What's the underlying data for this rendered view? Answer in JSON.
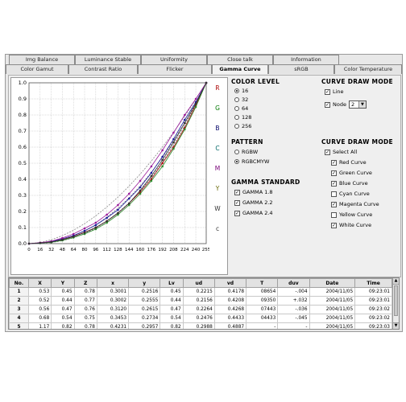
{
  "tabs_row1": [
    "Img Balance",
    "Luminance Stable",
    "Uniformity",
    "Close talk",
    "Information"
  ],
  "tabs_row2": [
    "Color Gamut",
    "Contrast Ratio",
    "Flicker",
    "Gamma Curve",
    "sRGB",
    "Color Temperature"
  ],
  "active_tab": "Gamma Curve",
  "side_labels": [
    "R",
    "G",
    "B",
    "C",
    "M",
    "Y",
    "W",
    "c"
  ],
  "color_level": {
    "title": "COLOR LEVEL",
    "options": [
      "16",
      "32",
      "64",
      "128",
      "256"
    ],
    "selected": "16"
  },
  "pattern": {
    "title": "PATTERN",
    "options": [
      "RGBW",
      "RGBCMYW"
    ],
    "selected": "RGBCMYW"
  },
  "gamma_standard": {
    "title": "GAMMA STANDARD",
    "options": [
      "GAMMA 1.8",
      "GAMMA 2.2",
      "GAMMA 2.4"
    ]
  },
  "curve_draw_mode_1": {
    "title": "CURVE DRAW MODE",
    "line_label": "Line",
    "node_label": "Node",
    "node_value": "2"
  },
  "curve_draw_mode_2": {
    "title": "CURVE DRAW MODE",
    "select_all": "Select All",
    "curves": [
      "Red Curve",
      "Green Curve",
      "Blue Curve",
      "Cyan Curve",
      "Magenta Curve",
      "Yellow Curve",
      "White Curve"
    ],
    "checked": [
      true,
      true,
      true,
      false,
      true,
      false,
      true
    ]
  },
  "table": {
    "headers": [
      "No.",
      "X",
      "Y",
      "Z",
      "x",
      "y",
      "Lv",
      "ud",
      "vd",
      "T",
      "duv",
      "Date",
      "Time"
    ],
    "rows": [
      [
        "1",
        "0.53",
        "0.45",
        "0.78",
        "0.3001",
        "0.2516",
        "0.45",
        "0.2215",
        "0.4178",
        "08654",
        "-.004",
        "2004/11/05",
        "09:23:01"
      ],
      [
        "2",
        "0.52",
        "0.44",
        "0.77",
        "0.3002",
        "0.2555",
        "0.44",
        "0.2156",
        "0.4208",
        "09350",
        "+.032",
        "2004/11/05",
        "09:23:01"
      ],
      [
        "3",
        "0.56",
        "0.47",
        "0.76",
        "0.3120",
        "0.2615",
        "0.47",
        "0.2264",
        "0.4268",
        "07443",
        "-.036",
        "2004/11/05",
        "09:23:02"
      ],
      [
        "4",
        "0.68",
        "0.54",
        "0.75",
        "0.3453",
        "0.2734",
        "0.54",
        "0.2476",
        "0.4433",
        "04433",
        "-.045",
        "2004/11/05",
        "09:23:02"
      ],
      [
        "5",
        "1.17",
        "0.82",
        "0.78",
        "0.4231",
        "0.2957",
        "0.82",
        "0.2988",
        "0.4887",
        "-",
        "-",
        "2004/11/05",
        "09:23:03"
      ]
    ]
  },
  "chart_data": {
    "type": "line",
    "x": [
      0,
      16,
      32,
      48,
      64,
      80,
      96,
      112,
      128,
      144,
      160,
      176,
      192,
      208,
      224,
      240,
      255
    ],
    "x_tick_labels": [
      "0",
      "16",
      "32",
      "48",
      "64",
      "80",
      "96",
      "112",
      "128",
      "144",
      "160",
      "176",
      "192",
      "208",
      "224",
      "240",
      "255"
    ],
    "y_tick_labels": [
      "0.0",
      "0.1",
      "0.2",
      "0.3",
      "0.4",
      "0.5",
      "0.6",
      "0.7",
      "0.8",
      "0.9",
      "1.0"
    ],
    "xlim": [
      0,
      255
    ],
    "ylim": [
      0,
      1
    ],
    "grid": true,
    "series": [
      {
        "gamma": 1.8,
        "color": "#888888",
        "dashed": true
      },
      {
        "gamma": 2.2,
        "color": "#777777",
        "dashed": true
      },
      {
        "gamma": 2.4,
        "color": "#666666",
        "dashed": true
      },
      {
        "values": [
          0,
          0.005,
          0.01,
          0.025,
          0.045,
          0.07,
          0.1,
          0.14,
          0.19,
          0.25,
          0.32,
          0.4,
          0.5,
          0.6,
          0.72,
          0.86,
          1.0
        ],
        "color": "#b01010",
        "marker": true
      },
      {
        "values": [
          0,
          0.003,
          0.008,
          0.02,
          0.038,
          0.06,
          0.09,
          0.13,
          0.18,
          0.24,
          0.31,
          0.39,
          0.48,
          0.59,
          0.71,
          0.85,
          1.0
        ],
        "color": "#2a8a2a",
        "marker": true
      },
      {
        "values": [
          0,
          0.004,
          0.012,
          0.03,
          0.05,
          0.08,
          0.115,
          0.16,
          0.21,
          0.28,
          0.35,
          0.44,
          0.54,
          0.65,
          0.77,
          0.88,
          1.0
        ],
        "color": "#1a1a9a",
        "marker": true
      },
      {
        "values": [
          0,
          0.006,
          0.015,
          0.035,
          0.06,
          0.095,
          0.13,
          0.18,
          0.24,
          0.31,
          0.39,
          0.48,
          0.58,
          0.69,
          0.8,
          0.9,
          1.0
        ],
        "color": "#9a1a9a",
        "marker": true
      },
      {
        "values": [
          0,
          0.004,
          0.01,
          0.024,
          0.043,
          0.068,
          0.1,
          0.14,
          0.19,
          0.25,
          0.33,
          0.42,
          0.52,
          0.63,
          0.75,
          0.87,
          1.0
        ],
        "color": "#333333",
        "marker": true
      }
    ]
  }
}
